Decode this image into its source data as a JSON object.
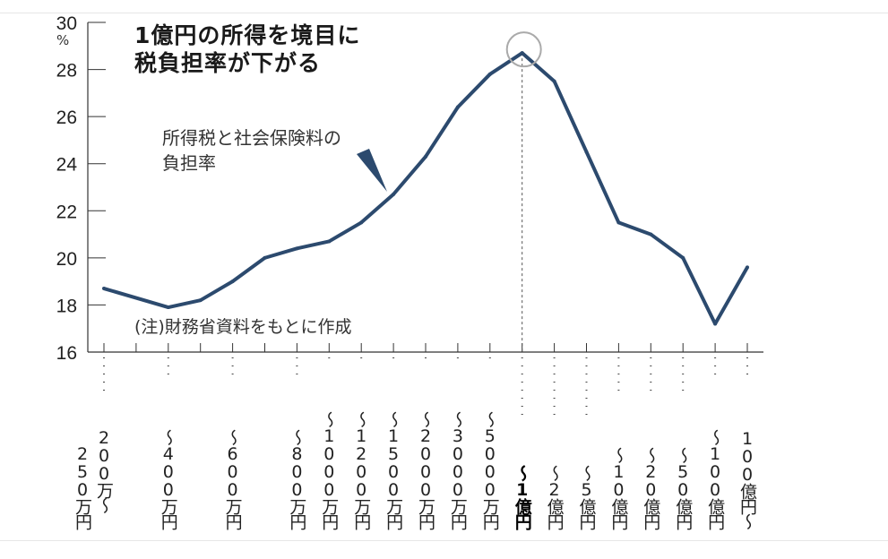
{
  "chart_data": {
    "type": "line",
    "title": "1億円の所得を境目に税負担率が下がる",
    "title_lines": [
      "1億円の所得を境目に",
      "税負担率が下がる"
    ],
    "series": [
      {
        "name": "所得税と社会保険料の負担率",
        "color": "#2c4a6e"
      }
    ],
    "legend_lines": [
      "所得税と社会保険料の",
      "負担率"
    ],
    "note": "(注)財務省資料をもとに作成",
    "ylabel": "%",
    "ylim": [
      16,
      30
    ],
    "yticks": [
      16,
      18,
      20,
      22,
      24,
      26,
      28,
      30
    ],
    "highlight_category": "〜1億円",
    "categories": [
      "250万円",
      "",
      "〜400万円",
      "",
      "〜600万円",
      "",
      "〜800万円",
      "〜1000万円",
      "〜1200万円",
      "〜1500万円",
      "〜2000万円",
      "〜3000万円",
      "〜5000万円",
      "〜1億円",
      "〜2億円",
      "〜5億円",
      "〜10億円",
      "〜20億円",
      "〜50億円",
      "〜100億円",
      "100億円〜"
    ],
    "first_label_extra": "200万〜",
    "values": [
      18.7,
      null,
      17.9,
      18.2,
      19.0,
      20.0,
      20.4,
      20.7,
      21.5,
      22.7,
      24.3,
      26.4,
      27.8,
      28.7,
      27.5,
      24.5,
      21.5,
      21.0,
      20.0,
      17.2,
      19.6
    ]
  }
}
